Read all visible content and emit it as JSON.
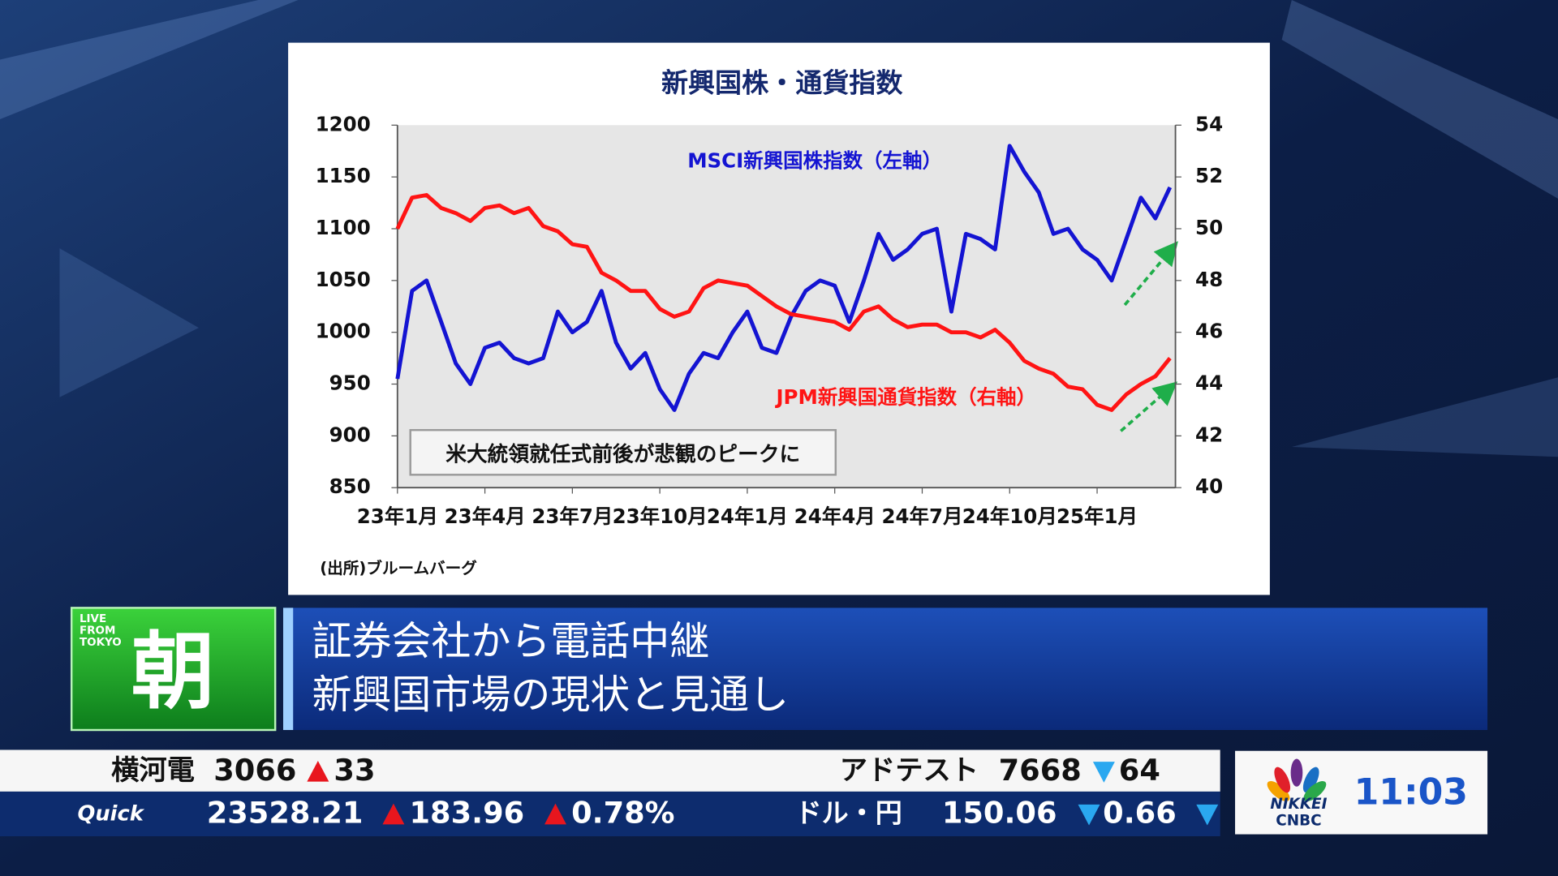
{
  "chart_data": {
    "type": "line",
    "title": "新興国株・通貨指数",
    "categories": [
      "23年1月",
      null,
      null,
      null,
      null,
      null,
      "23年4月",
      null,
      null,
      null,
      null,
      null,
      "23年7月",
      null,
      null,
      null,
      null,
      null,
      "23年10月",
      null,
      null,
      null,
      null,
      null,
      "24年1月",
      null,
      null,
      null,
      null,
      null,
      "24年4月",
      null,
      null,
      null,
      null,
      null,
      "24年7月",
      null,
      null,
      null,
      null,
      null,
      "24年10月",
      null,
      null,
      null,
      null,
      null,
      "25年1月",
      null,
      null,
      null,
      null,
      null
    ],
    "series": [
      {
        "name": "MSCI新興国株指数（左軸）",
        "color": "#1414d2",
        "axis": "y",
        "values": [
          955,
          1040,
          1050,
          1010,
          970,
          950,
          985,
          990,
          975,
          970,
          975,
          1020,
          1000,
          1010,
          1040,
          990,
          965,
          980,
          945,
          925,
          960,
          980,
          975,
          1000,
          1020,
          985,
          980,
          1015,
          1040,
          1050,
          1045,
          1010,
          1050,
          1095,
          1070,
          1080,
          1095,
          1100,
          1020,
          1095,
          1090,
          1080,
          1180,
          1155,
          1135,
          1095,
          1100,
          1080,
          1070,
          1050,
          1090,
          1130,
          1110,
          1140
        ]
      },
      {
        "name": "JPM新興国通貨指数（右軸）",
        "color": "#ff1414",
        "axis": "y2",
        "values": [
          50,
          51.2,
          51.3,
          50.8,
          50.6,
          50.3,
          50.8,
          50.9,
          50.6,
          50.8,
          50.1,
          49.9,
          49.4,
          49.3,
          48.3,
          48,
          47.6,
          47.6,
          46.9,
          46.6,
          46.8,
          47.7,
          48,
          47.9,
          47.8,
          47.4,
          47,
          46.7,
          46.6,
          46.5,
          46.4,
          46.1,
          46.8,
          47,
          46.5,
          46.2,
          46.3,
          46.3,
          46,
          46,
          45.8,
          46.1,
          45.6,
          44.9,
          44.6,
          44.4,
          43.9,
          43.8,
          43.2,
          43,
          43.6,
          44,
          44.3,
          45
        ]
      }
    ],
    "ylim": [
      850,
      1200
    ],
    "yticks": [
      850,
      900,
      950,
      1000,
      1050,
      1100,
      1150,
      1200
    ],
    "y2lim": [
      40,
      54
    ],
    "y2ticks": [
      40,
      42,
      44,
      46,
      48,
      50,
      52,
      54
    ],
    "annotation": "米大統領就任式前後が悲観のピークに",
    "source": "(出所)ブルームバーグ"
  },
  "program": {
    "badge": [
      "LIVE",
      "FROM",
      "TOKYO"
    ],
    "name": "朝"
  },
  "headline": [
    "証券会社から電話中継",
    "新興国市場の現状と見通し"
  ],
  "ticker": {
    "stocks": [
      {
        "name": "横河電",
        "price": 3066,
        "change": 33,
        "direction": "up"
      },
      {
        "name": "アドテスト",
        "price": 7668,
        "change": 64,
        "direction": "down"
      }
    ],
    "index": {
      "label": "Quick",
      "value": 23528.21,
      "change": 183.96,
      "change_pct": "0.78%",
      "direction": "up"
    },
    "fx": {
      "label": "ドル・円",
      "value": 150.06,
      "change": 0.66,
      "direction": "down"
    }
  },
  "logo": [
    "NIKKEI",
    "CNBC"
  ],
  "clock": "11:03"
}
